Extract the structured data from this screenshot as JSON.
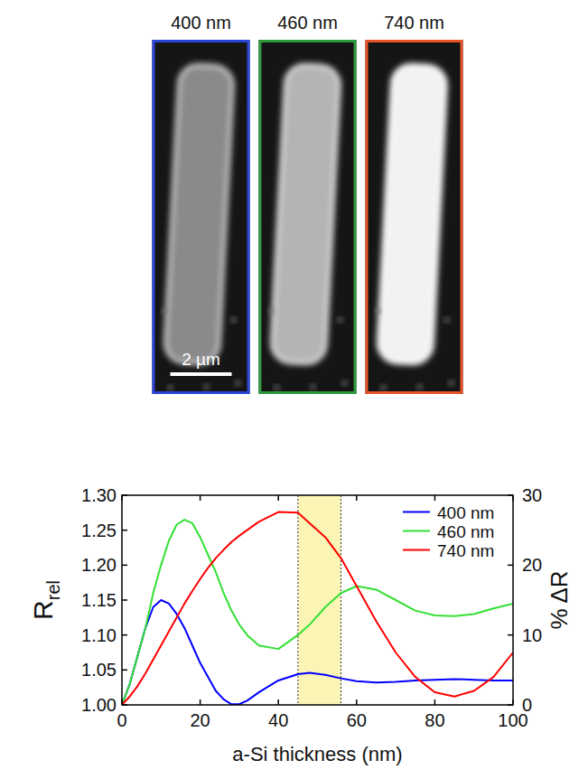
{
  "images": {
    "panels": [
      {
        "label": "400 nm",
        "color": "#2a45d8"
      },
      {
        "label": "460 nm",
        "color": "#2e9a3c"
      },
      {
        "label": "740 nm",
        "color": "#e8542a"
      }
    ],
    "scale_bar": "2 µm"
  },
  "chart_data": {
    "type": "line",
    "xlabel": "a-Si thickness (nm)",
    "ylabel": "R",
    "ylabel_subscript": "rel",
    "y2label": "% ΔR",
    "x": [
      0,
      2,
      4,
      6,
      8,
      10,
      12,
      14,
      16,
      18,
      20,
      22,
      24,
      26,
      28,
      30,
      32,
      35,
      40,
      45,
      48,
      52,
      56,
      60,
      65,
      70,
      75,
      80,
      85,
      90,
      95,
      100
    ],
    "series": [
      {
        "name": "400 nm",
        "color": "#0000ff",
        "values": [
          1.0,
          1.03,
          1.07,
          1.11,
          1.14,
          1.15,
          1.145,
          1.13,
          1.11,
          1.085,
          1.06,
          1.04,
          1.02,
          1.008,
          1.001,
          1.001,
          1.006,
          1.018,
          1.035,
          1.044,
          1.046,
          1.043,
          1.038,
          1.034,
          1.032,
          1.033,
          1.035,
          1.036,
          1.037,
          1.036,
          1.035,
          1.035
        ]
      },
      {
        "name": "460 nm",
        "color": "#33e033",
        "values": [
          1.0,
          1.03,
          1.07,
          1.11,
          1.16,
          1.2,
          1.235,
          1.258,
          1.265,
          1.26,
          1.24,
          1.215,
          1.19,
          1.16,
          1.135,
          1.115,
          1.1,
          1.085,
          1.08,
          1.1,
          1.115,
          1.14,
          1.16,
          1.17,
          1.165,
          1.15,
          1.135,
          1.128,
          1.127,
          1.13,
          1.138,
          1.145
        ]
      },
      {
        "name": "740 nm",
        "color": "#ff0000",
        "values": [
          1.0,
          1.012,
          1.027,
          1.045,
          1.065,
          1.085,
          1.105,
          1.125,
          1.145,
          1.163,
          1.18,
          1.196,
          1.21,
          1.222,
          1.233,
          1.242,
          1.25,
          1.262,
          1.276,
          1.275,
          1.26,
          1.24,
          1.21,
          1.17,
          1.12,
          1.075,
          1.04,
          1.018,
          1.012,
          1.02,
          1.04,
          1.075
        ]
      }
    ],
    "xlim": [
      0,
      100
    ],
    "xticks": [
      0,
      20,
      40,
      60,
      80,
      100
    ],
    "ylim": [
      1.0,
      1.3
    ],
    "yticks": [
      {
        "value": 1.0,
        "label": "1.00"
      },
      1.05,
      {
        "value": 1.1,
        "label": "1.10"
      },
      1.15,
      {
        "value": 1.2,
        "label": "1.20"
      },
      1.25,
      {
        "value": 1.3,
        "label": "1.30"
      }
    ],
    "y2lim": [
      0,
      30
    ],
    "y2ticks": [
      0,
      10,
      20,
      30
    ],
    "shaded_range": [
      45,
      56
    ],
    "legend": "upper right",
    "grid": false
  }
}
